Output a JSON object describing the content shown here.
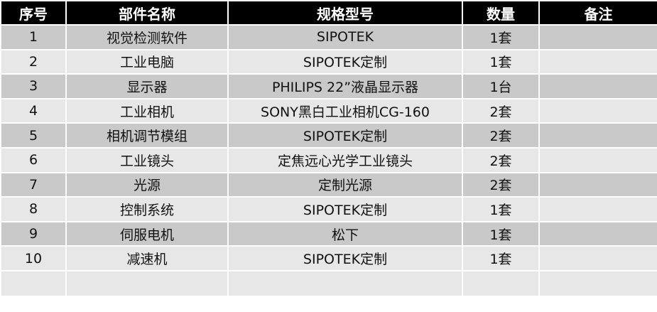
{
  "headers": [
    "序号",
    "部件名称",
    "规格型号",
    "数量",
    "备注"
  ],
  "rows": [
    {
      "no": "1",
      "name": "视觉检测软件",
      "spec": "SIPOTEK",
      "qty": "1套",
      "note": ""
    },
    {
      "no": "2",
      "name": "工业电脑",
      "spec": "SIPOTEK定制",
      "qty": "1套",
      "note": ""
    },
    {
      "no": "3",
      "name": "显示器",
      "spec": "PHILIPS  22”液晶显示器",
      "qty": "1台",
      "note": ""
    },
    {
      "no": "4",
      "name": "工业相机",
      "spec": "SONY黑白工业相机CG-160",
      "qty": "2套",
      "note": ""
    },
    {
      "no": "5",
      "name": "相机调节模组",
      "spec": "SIPOTEK定制",
      "qty": "2套",
      "note": ""
    },
    {
      "no": "6",
      "name": "工业镜头",
      "spec": "定焦远心光学工业镜头",
      "qty": "2套",
      "note": ""
    },
    {
      "no": "7",
      "name": "光源",
      "spec": "定制光源",
      "qty": "2套",
      "note": ""
    },
    {
      "no": "8",
      "name": "控制系统",
      "spec": "SIPOTEK定制",
      "qty": "1套",
      "note": ""
    },
    {
      "no": "9",
      "name": "伺服电机",
      "spec": "松下",
      "qty": "1套",
      "note": ""
    },
    {
      "no": "10",
      "name": "减速机",
      "spec": "SIPOTEK定制",
      "qty": "1套",
      "note": ""
    }
  ],
  "colors": {
    "header_bg": "#000000",
    "row_dark": "#c9c9c9",
    "row_light": "#e7e7e7"
  }
}
